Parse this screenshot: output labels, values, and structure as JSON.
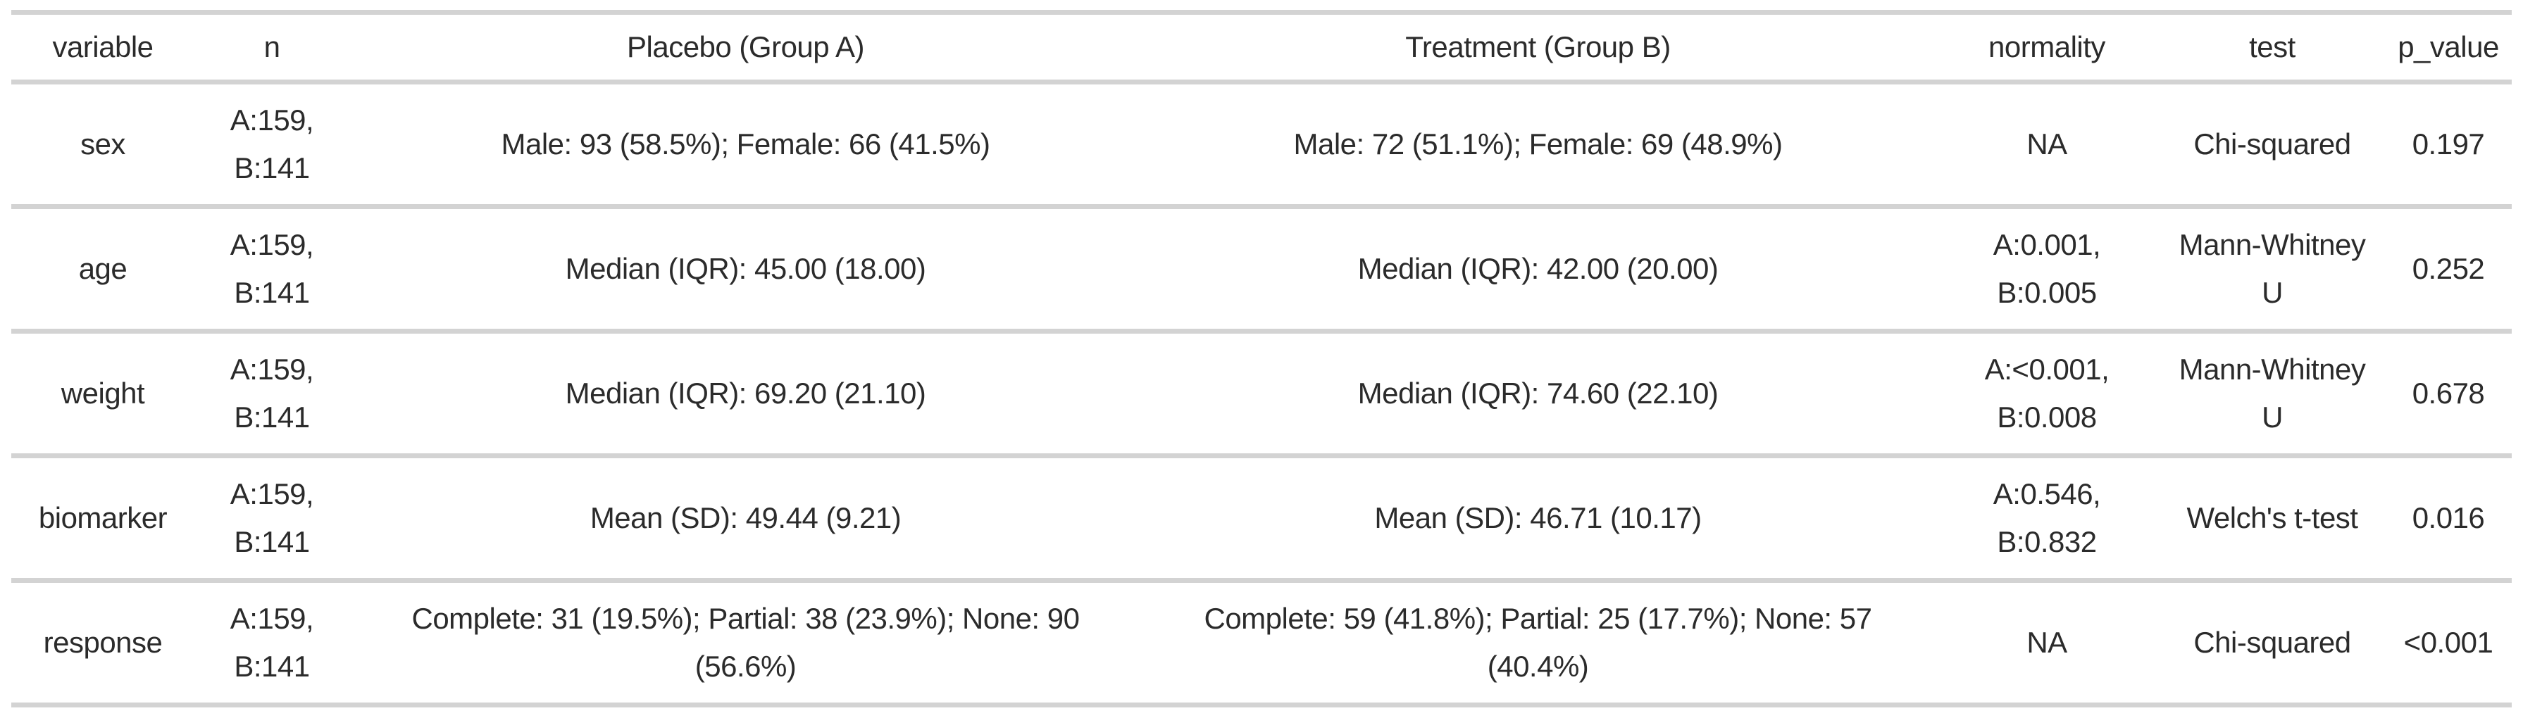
{
  "page": {
    "background_color": "#ffffff",
    "text_color": "#2b2b2b",
    "rule_color": "#d3d3d3"
  },
  "chart_data": {
    "type": "table",
    "layout": {
      "cell_alignment": "center",
      "grid": "horizontal-rules-only",
      "header_style": "plain"
    },
    "columns": [
      "variable",
      "n",
      "Placebo (Group A)",
      "Treatment (Group B)",
      "normality",
      "test",
      "p_value"
    ],
    "rows": [
      [
        "sex",
        "A:159, B:141",
        "Male: 93 (58.5%); Female: 66 (41.5%)",
        "Male: 72 (51.1%); Female: 69 (48.9%)",
        "NA",
        "Chi-squared",
        "0.197"
      ],
      [
        "age",
        "A:159, B:141",
        "Median (IQR): 45.00 (18.00)",
        "Median (IQR): 42.00 (20.00)",
        "A:0.001, B:0.005",
        "Mann-Whitney U",
        "0.252"
      ],
      [
        "weight",
        "A:159, B:141",
        "Median (IQR): 69.20 (21.10)",
        "Median (IQR): 74.60 (22.10)",
        "A:<0.001, B:0.008",
        "Mann-Whitney U",
        "0.678"
      ],
      [
        "biomarker",
        "A:159, B:141",
        "Mean (SD): 49.44 (9.21)",
        "Mean (SD): 46.71 (10.17)",
        "A:0.546, B:0.832",
        "Welch's t-test",
        "0.016"
      ],
      [
        "response",
        "A:159, B:141",
        "Complete: 31 (19.5%); Partial: 38 (23.9%); None: 90 (56.6%)",
        "Complete: 59 (41.8%); Partial: 25 (17.7%); None: 57 (40.4%)",
        "NA",
        "Chi-squared",
        "<0.001"
      ]
    ]
  }
}
